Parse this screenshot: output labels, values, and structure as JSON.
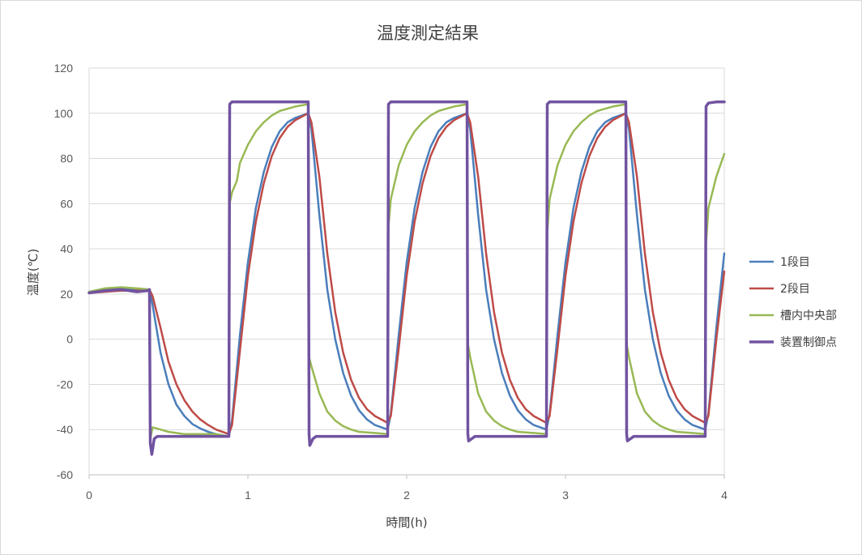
{
  "chart_data": {
    "type": "line",
    "title": "温度測定結果",
    "xlabel": "時間(h)",
    "ylabel": "温度(℃)",
    "xlim": [
      0,
      4
    ],
    "ylim": [
      -60,
      120
    ],
    "xticks": [
      0,
      1,
      2,
      3,
      4
    ],
    "yticks": [
      -60,
      -40,
      -20,
      0,
      20,
      40,
      60,
      80,
      100,
      120
    ],
    "grid": true,
    "legend_position": "right",
    "series": [
      {
        "name": "1段目",
        "color": "#4a7ebb",
        "x": [
          0,
          0.1,
          0.2,
          0.3,
          0.38,
          0.4,
          0.45,
          0.5,
          0.55,
          0.6,
          0.65,
          0.7,
          0.75,
          0.8,
          0.88,
          0.9,
          0.95,
          1.0,
          1.05,
          1.1,
          1.15,
          1.2,
          1.25,
          1.3,
          1.38,
          1.4,
          1.45,
          1.5,
          1.55,
          1.6,
          1.65,
          1.7,
          1.75,
          1.8,
          1.88,
          1.9,
          1.95,
          2.0,
          2.05,
          2.1,
          2.15,
          2.2,
          2.25,
          2.3,
          2.38,
          2.4,
          2.45,
          2.5,
          2.55,
          2.6,
          2.65,
          2.7,
          2.75,
          2.8,
          2.88,
          2.9,
          2.95,
          3.0,
          3.05,
          3.1,
          3.15,
          3.2,
          3.25,
          3.3,
          3.38,
          3.4,
          3.45,
          3.5,
          3.55,
          3.6,
          3.65,
          3.7,
          3.75,
          3.8,
          3.88,
          3.9,
          3.95,
          4.0
        ],
        "y": [
          21,
          22,
          22.5,
          22,
          22,
          15,
          -6,
          -20,
          -29,
          -34,
          -37.5,
          -39.5,
          -41,
          -42,
          -43,
          -36,
          2,
          34,
          58,
          74,
          85,
          92,
          96,
          98,
          100,
          93,
          55,
          22,
          0,
          -15,
          -25,
          -31.5,
          -35.5,
          -38,
          -40,
          -33,
          2,
          34,
          58,
          74,
          85,
          92,
          96,
          98,
          100,
          93,
          55,
          22,
          0,
          -15,
          -25,
          -31.5,
          -35.5,
          -38,
          -40,
          -33,
          2,
          34,
          58,
          74,
          85,
          92,
          96,
          98,
          100,
          93,
          55,
          22,
          0,
          -15,
          -25,
          -31.5,
          -35.5,
          -38,
          -40,
          -33,
          5,
          38
        ]
      },
      {
        "name": "2段目",
        "color": "#be4b48",
        "x": [
          0,
          0.1,
          0.2,
          0.3,
          0.38,
          0.4,
          0.45,
          0.5,
          0.55,
          0.6,
          0.65,
          0.7,
          0.75,
          0.8,
          0.88,
          0.9,
          0.95,
          1.0,
          1.05,
          1.1,
          1.15,
          1.2,
          1.25,
          1.3,
          1.38,
          1.4,
          1.45,
          1.5,
          1.55,
          1.6,
          1.65,
          1.7,
          1.75,
          1.8,
          1.88,
          1.9,
          1.95,
          2.0,
          2.05,
          2.1,
          2.15,
          2.2,
          2.25,
          2.3,
          2.38,
          2.4,
          2.45,
          2.5,
          2.55,
          2.6,
          2.65,
          2.7,
          2.75,
          2.8,
          2.88,
          2.9,
          2.95,
          3.0,
          3.05,
          3.1,
          3.15,
          3.2,
          3.25,
          3.3,
          3.38,
          3.4,
          3.45,
          3.5,
          3.55,
          3.6,
          3.65,
          3.7,
          3.75,
          3.8,
          3.88,
          3.9,
          3.95,
          4.0
        ],
        "y": [
          20.5,
          21,
          21.5,
          21.5,
          22,
          19,
          5,
          -10,
          -20,
          -27,
          -32,
          -35.5,
          -38,
          -40,
          -42,
          -38,
          -5,
          28,
          52,
          69,
          81,
          89,
          94,
          97,
          100,
          96,
          72,
          38,
          12,
          -6,
          -18,
          -26,
          -31,
          -34,
          -37,
          -34,
          -4,
          28,
          52,
          69,
          81,
          89,
          94,
          97,
          100,
          96,
          72,
          38,
          12,
          -6,
          -18,
          -26,
          -31,
          -34,
          -37,
          -34,
          -4,
          28,
          52,
          69,
          81,
          89,
          94,
          97,
          100,
          96,
          72,
          38,
          12,
          -6,
          -18,
          -26,
          -31,
          -34,
          -37,
          -34,
          0,
          30
        ]
      },
      {
        "name": "槽内中央部",
        "color": "#98b954",
        "x": [
          0,
          0.1,
          0.2,
          0.3,
          0.38,
          0.385,
          0.4,
          0.45,
          0.5,
          0.55,
          0.6,
          0.7,
          0.8,
          0.88,
          0.885,
          0.9,
          0.93,
          0.95,
          1.0,
          1.05,
          1.1,
          1.15,
          1.2,
          1.25,
          1.3,
          1.38,
          1.385,
          1.4,
          1.45,
          1.5,
          1.55,
          1.6,
          1.65,
          1.7,
          1.8,
          1.88,
          1.885,
          1.9,
          1.95,
          2.0,
          2.05,
          2.1,
          2.15,
          2.2,
          2.25,
          2.3,
          2.38,
          2.385,
          2.4,
          2.45,
          2.5,
          2.55,
          2.6,
          2.65,
          2.7,
          2.8,
          2.88,
          2.885,
          2.9,
          2.95,
          3.0,
          3.05,
          3.1,
          3.15,
          3.2,
          3.25,
          3.3,
          3.38,
          3.385,
          3.4,
          3.45,
          3.5,
          3.55,
          3.6,
          3.65,
          3.7,
          3.8,
          3.88,
          3.885,
          3.9,
          3.95,
          4.0
        ],
        "y": [
          21,
          22.5,
          23,
          22.5,
          22,
          -44,
          -39,
          -40,
          -41,
          -41.5,
          -42,
          -42,
          -42,
          -43,
          60,
          65,
          70,
          78,
          86,
          92,
          96,
          99,
          101,
          102,
          103,
          104,
          -8,
          -12,
          -24,
          -32,
          -36,
          -38.5,
          -40,
          -41,
          -41.5,
          -42,
          50,
          62,
          77,
          86,
          92,
          96,
          99,
          101,
          102,
          103,
          104,
          -2,
          -8,
          -24,
          -32,
          -36,
          -38.5,
          -40,
          -41,
          -41.5,
          -42,
          47,
          62,
          77,
          86,
          92,
          96,
          99,
          101,
          102,
          103,
          104,
          -2,
          -8,
          -24,
          -32,
          -36,
          -38.5,
          -40,
          -41,
          -41.5,
          -42,
          42,
          58,
          72,
          82
        ]
      },
      {
        "name": "装置制御点",
        "color": "#7153a0",
        "x": [
          0,
          0.1,
          0.2,
          0.3,
          0.37,
          0.38,
          0.385,
          0.395,
          0.41,
          0.43,
          0.5,
          0.6,
          0.7,
          0.8,
          0.88,
          0.885,
          0.9,
          1.0,
          1.2,
          1.38,
          1.385,
          1.39,
          1.41,
          1.43,
          1.5,
          1.7,
          1.88,
          1.885,
          1.9,
          2.0,
          2.2,
          2.38,
          2.385,
          2.39,
          2.41,
          2.43,
          2.5,
          2.7,
          2.88,
          2.885,
          2.9,
          3.0,
          3.2,
          3.38,
          3.385,
          3.39,
          3.41,
          3.43,
          3.5,
          3.7,
          3.88,
          3.885,
          3.9,
          3.95,
          4.0
        ],
        "y": [
          20.5,
          21.5,
          22,
          21,
          21.5,
          22,
          -46,
          -51,
          -44,
          -43,
          -43,
          -43,
          -43,
          -43,
          -43,
          104,
          105,
          105,
          105,
          105,
          -42,
          -47,
          -44,
          -43,
          -43,
          -43,
          -43,
          104,
          105,
          105,
          105,
          105,
          -42,
          -45,
          -44,
          -43,
          -43,
          -43,
          -43,
          104,
          105,
          105,
          105,
          105,
          -42,
          -45,
          -44,
          -43,
          -43,
          -43,
          -43,
          103,
          104.5,
          105,
          105
        ]
      }
    ]
  }
}
